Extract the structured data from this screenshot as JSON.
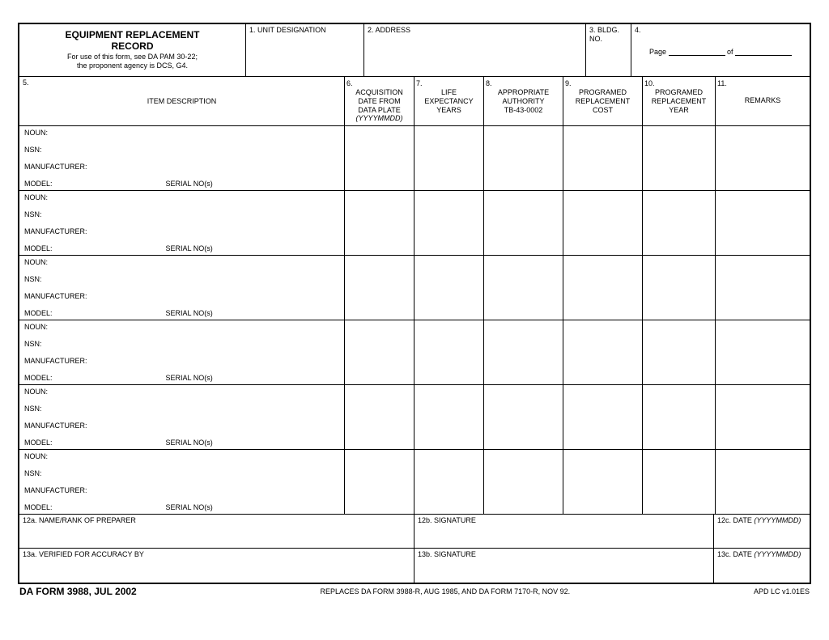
{
  "header": {
    "title1": "EQUIPMENT REPLACEMENT",
    "title2": "RECORD",
    "sub1": "For use of this form, see DA PAM 30-22;",
    "sub2": "the proponent agency is DCS, G4.",
    "f1": "1. UNIT DESIGNATION",
    "f2": "2. ADDRESS",
    "f3": "3. BLDG. NO.",
    "f4": "4.",
    "page": "Page",
    "of": "of"
  },
  "cols": {
    "c5n": "5.",
    "c5": "ITEM DESCRIPTION",
    "c6n": "6.",
    "c6a": "ACQUISITION",
    "c6b": "DATE FROM",
    "c6c": "DATA PLATE",
    "c6d": "(YYYYMMDD)",
    "c7n": "7.",
    "c7a": "LIFE",
    "c7b": "EXPECTANCY",
    "c7c": "YEARS",
    "c8n": "8.",
    "c8a": "APPROPRIATE",
    "c8b": "AUTHORITY",
    "c8c": "TB-43-0002",
    "c9n": "9.",
    "c9a": "PROGRAMED",
    "c9b": "REPLACEMENT",
    "c9c": "COST",
    "c10n": "10.",
    "c10a": "PROGRAMED",
    "c10b": "REPLACEMENT",
    "c10c": "YEAR",
    "c11n": "11.",
    "c11": "REMARKS"
  },
  "item": {
    "noun": "NOUN:",
    "nsn": "NSN:",
    "mfr": "MANUFACTURER:",
    "model": "MODEL:",
    "serial": "SERIAL NO(s)"
  },
  "footer": {
    "f12a": "12a.  NAME/RANK OF PREPARER",
    "f12b": "12b.  SIGNATURE",
    "f12c": "12c.  DATE ",
    "f12cd": "(YYYYMMDD)",
    "f13a": "13a.  VERIFIED FOR ACCURACY BY",
    "f13b": "13b.  SIGNATURE",
    "f13c": "13c.  DATE ",
    "f13cd": "(YYYYMMDD)"
  },
  "below": {
    "left": "DA FORM 3988, JUL 2002",
    "center": "REPLACES DA FORM 3988-R, AUG 1985, AND DA FORM 7170-R, NOV 92.",
    "right": "APD LC v1.01ES"
  },
  "layout": {
    "col_widths": {
      "c5": 402,
      "c6": 86,
      "c7": 86,
      "c8": 98,
      "c9": 98,
      "c10": 90,
      "c11": 116
    },
    "hdr_widths": {
      "title": 280,
      "unit": 146,
      "addr": 274,
      "bldg": 56,
      "page": 220
    },
    "item_row_height": 80,
    "row_count": 6
  }
}
